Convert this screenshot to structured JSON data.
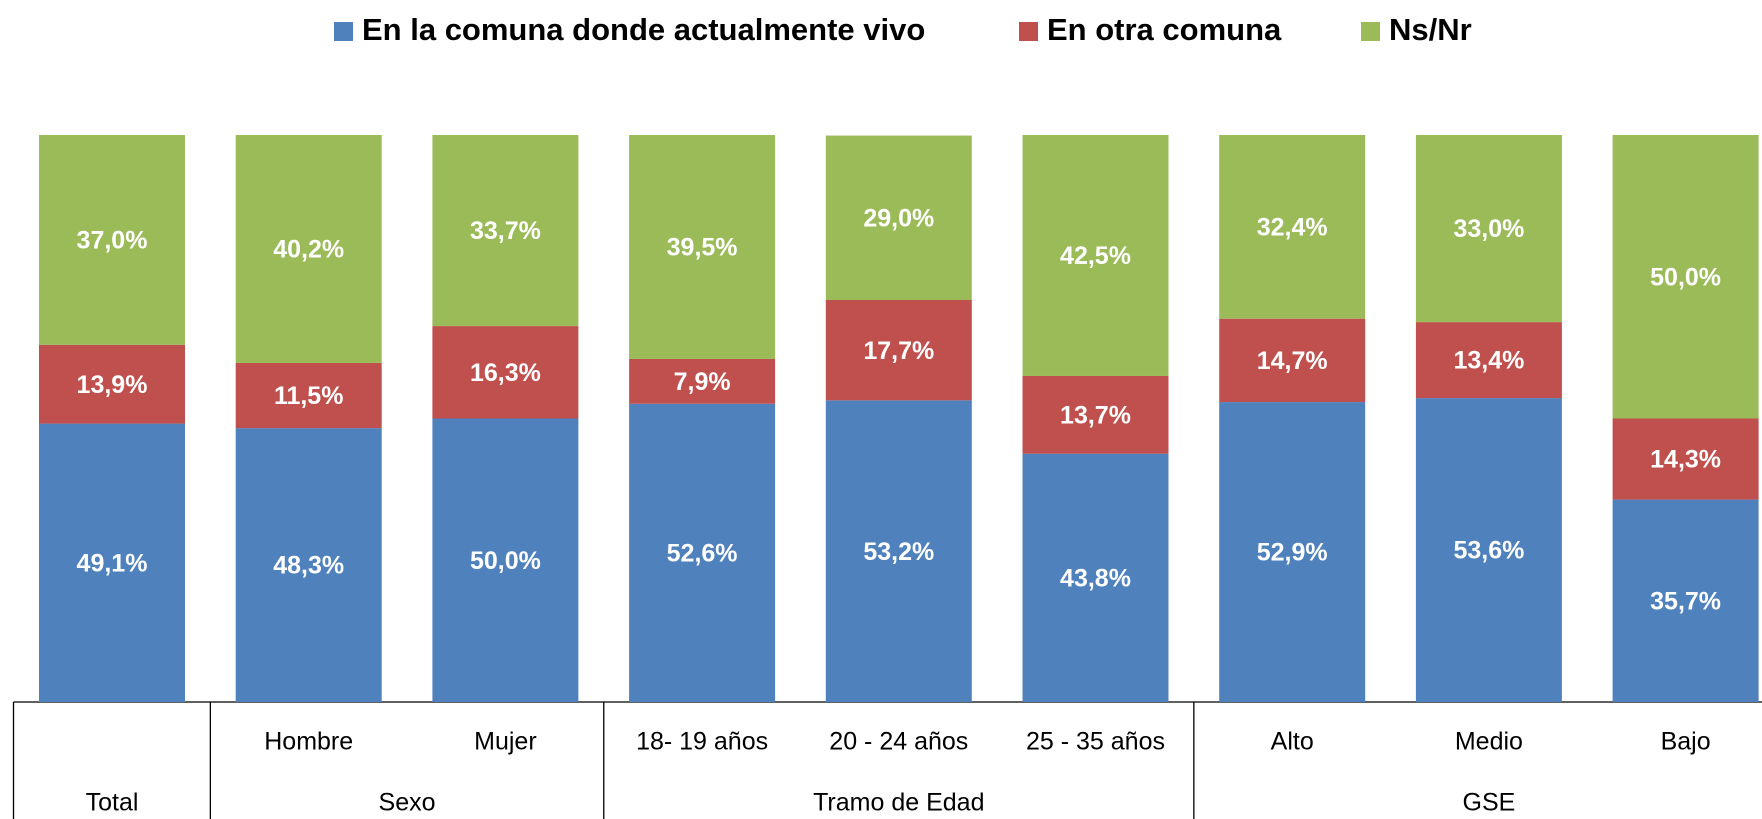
{
  "chart_data": {
    "type": "stacked_bar",
    "categories": [
      null,
      "Hombre",
      "Mujer",
      "18- 19 años",
      "20 - 24 años",
      "25  - 35 años",
      "Alto",
      "Medio",
      "Bajo"
    ],
    "groups": [
      {
        "label": "Total",
        "span": 1
      },
      {
        "label": "Sexo",
        "span": 2
      },
      {
        "label": "Tramo de Edad",
        "span": 3
      },
      {
        "label": "GSE",
        "span": 3
      }
    ],
    "series": [
      {
        "name": "En la comuna donde actualmente vivo",
        "color": "#4f81bd",
        "values": [
          49.1,
          48.3,
          50.0,
          52.6,
          53.2,
          43.8,
          52.9,
          53.6,
          35.7
        ],
        "value_labels": [
          "49,1%",
          "48,3%",
          "50,0%",
          "52,6%",
          "53,2%",
          "43,8%",
          "52,9%",
          "53,6%",
          "35,7%"
        ]
      },
      {
        "name": "En otra comuna",
        "color": "#c0504d",
        "values": [
          13.9,
          11.5,
          16.3,
          7.9,
          17.7,
          13.7,
          14.7,
          13.4,
          14.3
        ],
        "value_labels": [
          "13,9%",
          "11,5%",
          "16,3%",
          "7,9%",
          "17,7%",
          "13,7%",
          "14,7%",
          "13,4%",
          "14,3%"
        ]
      },
      {
        "name": "Ns/Nr",
        "color": "#9bbb59",
        "values": [
          37.0,
          40.2,
          33.7,
          39.5,
          29.0,
          42.5,
          32.4,
          33.0,
          50.0
        ],
        "value_labels": [
          "37,0%",
          "40,2%",
          "33,7%",
          "39,5%",
          "29,0%",
          "42,5%",
          "32,4%",
          "33,0%",
          "50,0%"
        ]
      }
    ],
    "ylim": [
      0,
      100
    ],
    "legend": "top"
  }
}
